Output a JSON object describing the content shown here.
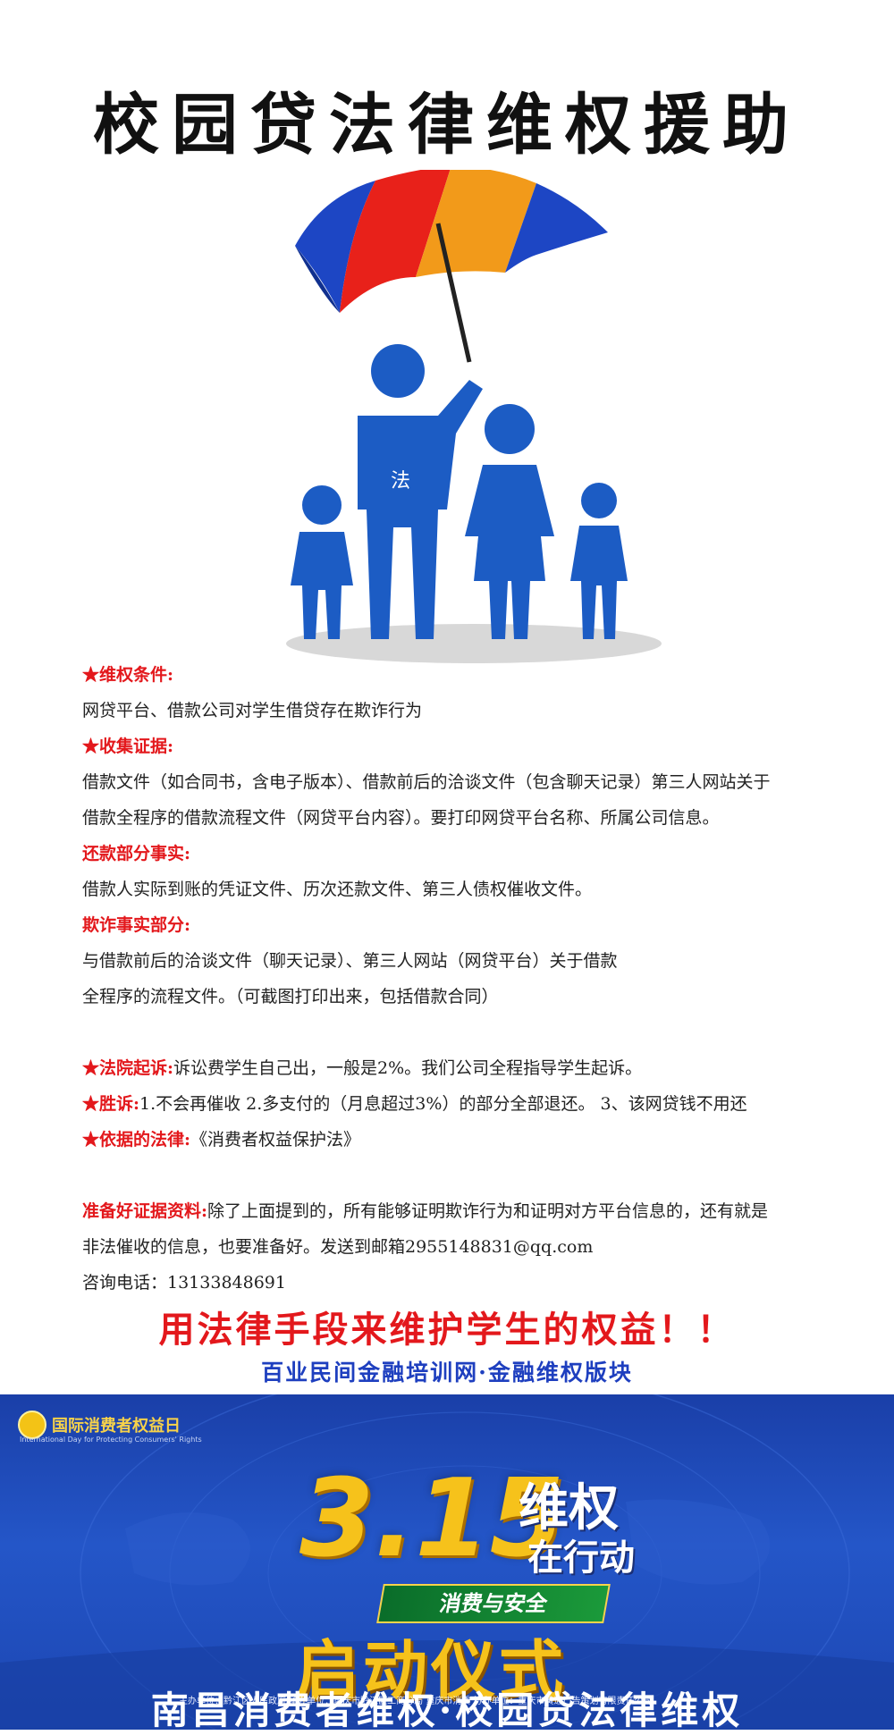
{
  "header": {
    "title": "校园贷法律维权援助"
  },
  "illustration": {
    "figure_label": "法"
  },
  "content": {
    "s1_head": "★维权条件:",
    "s1_body": "网贷平台、借款公司对学生借贷存在欺诈行为",
    "s2_head": "★收集证据:",
    "s2_body1": "借款文件（如合同书，含电子版本）、借款前后的洽谈文件（包含聊天记录）第三人网站关于",
    "s2_body2": "借款全程序的借款流程文件（网贷平台内容）。要打印网贷平台名称、所属公司信息。",
    "s3_head": "还款部分事实:",
    "s3_body": "借款人实际到账的凭证文件、历次还款文件、第三人债权催收文件。",
    "s4_head": "欺诈事实部分:",
    "s4_body1": "与借款前后的洽谈文件（聊天记录）、第三人网站（网贷平台）关于借款",
    "s4_body2": "全程序的流程文件。（可截图打印出来，包括借款合同）",
    "s5_head": "★法院起诉:",
    "s5_body": "诉讼费学生自己出，一般是2%。我们公司全程指导学生起诉。",
    "s6_head": "★胜诉:",
    "s6_body": "1.不会再催收  2.多支付的（月息超过3%）的部分全部退还。 3、该网贷钱不用还",
    "s7_head": "★依据的法律:",
    "s7_body": "《消费者权益保护法》",
    "s8_head": "准备好证据资料:",
    "s8_body1": "除了上面提到的，所有能够证明欺诈行为和证明对方平台信息的，还有就是",
    "s8_body2": "非法催收的信息，也要准备好。发送到邮箱2955148831@qq.com",
    "s9_body": "咨询电话：13133848691"
  },
  "slogan": "用法律手段来维护学生的权益！！",
  "sub_slogan": "百业民间金融培训网·金融维权版块",
  "banner": {
    "logo_text": "国际消费者权益日",
    "logo_sub": "International Day for Protecting Consumers' Rights",
    "number": "3.15",
    "weiquan": "维权",
    "zaixing": "在行动",
    "xiaofei": "消费与安全",
    "qidong": "启动仪式",
    "organizers": "主办单位：黔江区人民政府     承办单位：重庆市黔江区工商分局  重庆市消委     协办单位：重庆市黄通广告策划有限责任公司"
  },
  "footer": {
    "title": "南昌消费者维权·校园贷法律维权"
  },
  "colors": {
    "accent_red": "#e3181c",
    "accent_blue": "#1e3fbf",
    "banner_blue": "#1c46b2",
    "gold": "#f6c21b"
  }
}
